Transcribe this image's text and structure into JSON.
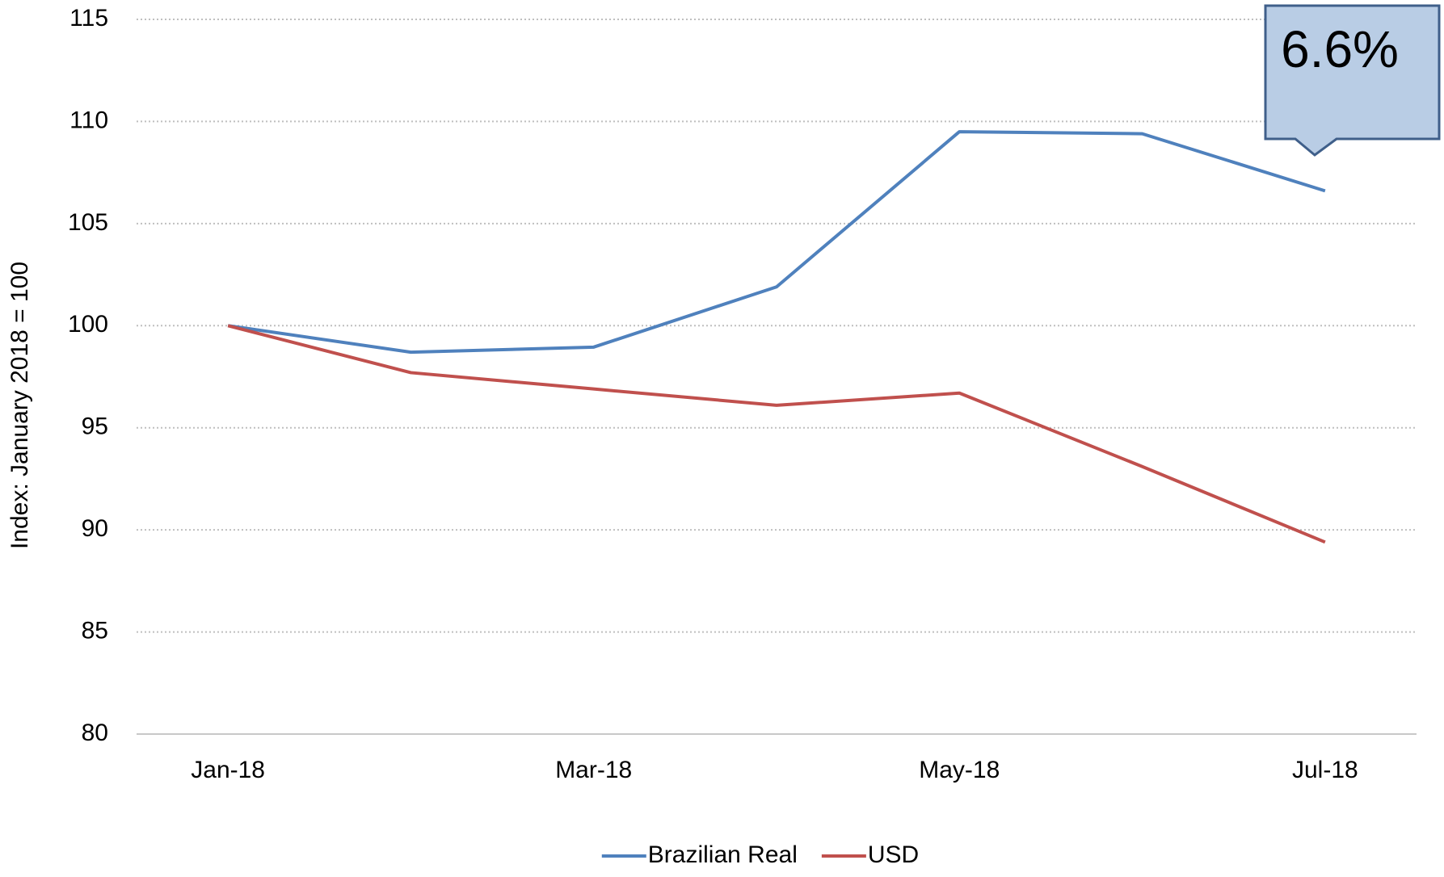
{
  "chart_data": {
    "type": "line",
    "ylabel": "Index: January 2018  = 100",
    "categories": [
      "Jan-18",
      null,
      "Mar-18",
      null,
      "May-18",
      null,
      "Jul-18"
    ],
    "series": [
      {
        "name": "Brazilian Real",
        "color": "#4f81bd",
        "values": [
          100,
          98.7,
          98.95,
          101.9,
          109.5,
          109.4,
          106.6
        ]
      },
      {
        "name": "USD",
        "color": "#c0504d",
        "values": [
          100,
          97.7,
          96.9,
          96.1,
          96.7,
          93.1,
          89.4
        ]
      }
    ],
    "ylim": [
      80,
      115
    ],
    "yticks": [
      80,
      85,
      90,
      95,
      100,
      105,
      110,
      115
    ],
    "grid": true,
    "legend": "bottom",
    "annotation": "6.6%"
  }
}
